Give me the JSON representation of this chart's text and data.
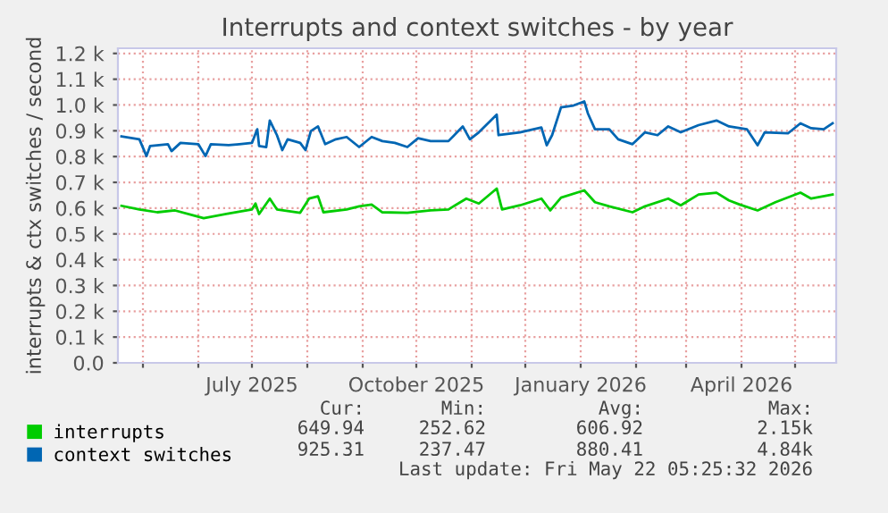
{
  "chart_data": {
    "type": "line",
    "title": "Interrupts and context switches - by year",
    "ylabel": "interrupts & ctx switches / second",
    "xlim": [
      "2025-04-17",
      "2026-05-24"
    ],
    "xticks": [
      {
        "value": "2025-05-01",
        "label": null
      },
      {
        "value": "2025-06-01",
        "label": null
      },
      {
        "value": "2025-07-01",
        "label": "July 2025"
      },
      {
        "value": "2025-08-01",
        "label": null
      },
      {
        "value": "2025-09-01",
        "label": null
      },
      {
        "value": "2025-10-01",
        "label": "October 2025"
      },
      {
        "value": "2025-11-01",
        "label": null
      },
      {
        "value": "2025-12-01",
        "label": null
      },
      {
        "value": "2026-01-01",
        "label": "January 2026"
      },
      {
        "value": "2026-02-01",
        "label": null
      },
      {
        "value": "2026-03-01",
        "label": null
      },
      {
        "value": "2026-04-01",
        "label": "April 2026"
      },
      {
        "value": "2026-05-01",
        "label": null
      }
    ],
    "ylim": [
      0,
      1220
    ],
    "yticks": [
      {
        "value": 0,
        "label": "0.0"
      },
      {
        "value": 100,
        "label": "0.1 k"
      },
      {
        "value": 200,
        "label": "0.2 k"
      },
      {
        "value": 300,
        "label": "0.3 k"
      },
      {
        "value": 400,
        "label": "0.4 k"
      },
      {
        "value": 500,
        "label": "0.5 k"
      },
      {
        "value": 600,
        "label": "0.6 k"
      },
      {
        "value": 700,
        "label": "0.7 k"
      },
      {
        "value": 800,
        "label": "0.8 k"
      },
      {
        "value": 900,
        "label": "0.9 k"
      },
      {
        "value": 1000,
        "label": "1.0 k"
      },
      {
        "value": 1100,
        "label": "1.1 k"
      },
      {
        "value": 1200,
        "label": "1.2 k"
      }
    ],
    "grid": true,
    "legend": "bottom",
    "marker": "none",
    "line_style": "solid",
    "series": [
      {
        "name": "interrupts",
        "color": "#00cc00",
        "x": [
          "2025-04-19",
          "2025-04-29",
          "2025-05-09",
          "2025-05-19",
          "2025-05-29",
          "2025-06-04",
          "2025-06-18",
          "2025-07-01",
          "2025-07-03",
          "2025-07-05",
          "2025-07-11",
          "2025-07-15",
          "2025-07-28",
          "2025-08-02",
          "2025-08-07",
          "2025-08-10",
          "2025-08-23",
          "2025-08-30",
          "2025-09-06",
          "2025-09-12",
          "2025-09-26",
          "2025-10-09",
          "2025-10-19",
          "2025-10-29",
          "2025-11-05",
          "2025-11-15",
          "2025-11-18",
          "2025-11-28",
          "2025-12-10",
          "2025-12-15",
          "2025-12-21",
          "2026-01-03",
          "2026-01-09",
          "2026-01-17",
          "2026-01-30",
          "2026-02-06",
          "2026-02-19",
          "2026-02-26",
          "2026-03-08",
          "2026-03-18",
          "2026-03-25",
          "2026-03-31",
          "2026-04-10",
          "2026-04-20",
          "2026-05-04",
          "2026-05-10",
          "2026-05-22"
        ],
        "values": [
          609,
          595,
          584,
          591,
          572,
          561,
          579,
          595,
          618,
          577,
          637,
          595,
          582,
          637,
          646,
          584,
          595,
          607,
          614,
          584,
          582,
          591,
          595,
          637,
          618,
          676,
          595,
          611,
          637,
          591,
          641,
          669,
          623,
          607,
          584,
          607,
          637,
          611,
          653,
          660,
          630,
          614,
          591,
          623,
          660,
          637,
          653
        ]
      },
      {
        "name": "context switches",
        "color": "#0066b3",
        "x": [
          "2025-04-19",
          "2025-04-29",
          "2025-05-03",
          "2025-05-05",
          "2025-05-15",
          "2025-05-17",
          "2025-05-22",
          "2025-06-01",
          "2025-06-05",
          "2025-06-08",
          "2025-06-18",
          "2025-06-24",
          "2025-07-01",
          "2025-07-04",
          "2025-07-05",
          "2025-07-09",
          "2025-07-11",
          "2025-07-15",
          "2025-07-18",
          "2025-07-21",
          "2025-07-28",
          "2025-07-31",
          "2025-08-03",
          "2025-08-07",
          "2025-08-11",
          "2025-08-17",
          "2025-08-23",
          "2025-08-30",
          "2025-09-06",
          "2025-09-12",
          "2025-09-19",
          "2025-09-26",
          "2025-10-02",
          "2025-10-09",
          "2025-10-19",
          "2025-10-27",
          "2025-10-31",
          "2025-11-05",
          "2025-11-15",
          "2025-11-16",
          "2025-11-28",
          "2025-12-10",
          "2025-12-13",
          "2025-12-16",
          "2025-12-21",
          "2025-12-28",
          "2026-01-03",
          "2026-01-05",
          "2026-01-09",
          "2026-01-17",
          "2026-01-22",
          "2026-01-30",
          "2026-02-06",
          "2026-02-13",
          "2026-02-19",
          "2026-02-26",
          "2026-03-08",
          "2026-03-18",
          "2026-03-25",
          "2026-04-04",
          "2026-04-10",
          "2026-04-14",
          "2026-04-27",
          "2026-05-04",
          "2026-05-10",
          "2026-05-17",
          "2026-05-22"
        ],
        "values": [
          878,
          867,
          802,
          841,
          848,
          821,
          853,
          848,
          802,
          848,
          844,
          848,
          853,
          906,
          841,
          837,
          940,
          883,
          825,
          867,
          853,
          825,
          899,
          917,
          848,
          867,
          876,
          837,
          876,
          860,
          853,
          837,
          871,
          860,
          860,
          917,
          867,
          894,
          963,
          883,
          894,
          913,
          844,
          883,
          991,
          998,
          1014,
          968,
          906,
          906,
          867,
          848,
          894,
          883,
          917,
          894,
          922,
          940,
          917,
          906,
          844,
          894,
          890,
          929,
          910,
          906,
          929
        ]
      }
    ],
    "annotations": [
      "Cur:",
      "Min:",
      "Avg:",
      "Max:",
      "649.94",
      "252.62",
      "606.92",
      "2.15k",
      "925.31",
      "237.47",
      "880.41",
      "4.84k",
      "Last update: Fri May 22 05:25:32 2026"
    ]
  }
}
